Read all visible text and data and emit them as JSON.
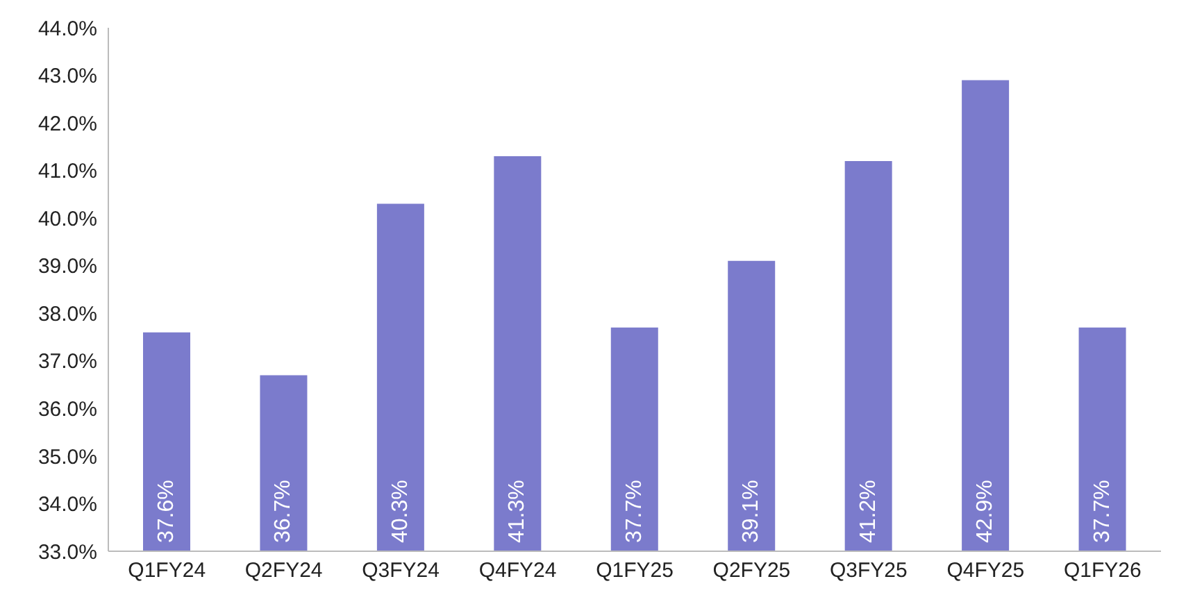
{
  "chart_data": {
    "type": "bar",
    "categories": [
      "Q1FY24",
      "Q2FY24",
      "Q3FY24",
      "Q4FY24",
      "Q1FY25",
      "Q2FY25",
      "Q3FY25",
      "Q4FY25",
      "Q1FY26"
    ],
    "values": [
      37.6,
      36.7,
      40.3,
      41.3,
      37.7,
      39.1,
      41.2,
      42.9,
      37.7
    ],
    "value_labels": [
      "37.6%",
      "36.7%",
      "40.3%",
      "41.3%",
      "37.7%",
      "39.1%",
      "41.2%",
      "42.9%",
      "37.7%"
    ],
    "color": "#7b7bcc",
    "ylim": [
      33,
      44
    ],
    "yticks": [
      {
        "value": 33,
        "label": "33.0%"
      },
      {
        "value": 34,
        "label": "34.0%"
      },
      {
        "value": 35,
        "label": "35.0%"
      },
      {
        "value": 36,
        "label": "36.0%"
      },
      {
        "value": 37,
        "label": "37.0%"
      },
      {
        "value": 38,
        "label": "38.0%"
      },
      {
        "value": 39,
        "label": "39.0%"
      },
      {
        "value": 40,
        "label": "40.0%"
      },
      {
        "value": 41,
        "label": "41.0%"
      },
      {
        "value": 42,
        "label": "42.0%"
      },
      {
        "value": 43,
        "label": "43.0%"
      },
      {
        "value": 44,
        "label": "44.0%"
      }
    ]
  }
}
